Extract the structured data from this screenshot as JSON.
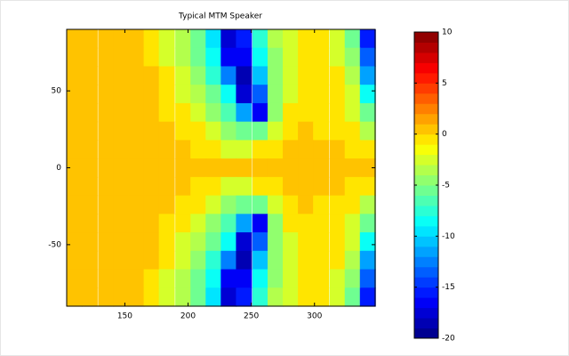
{
  "chart_data": {
    "type": "heatmap",
    "title": "Typical MTM Speaker",
    "x": [
      110,
      122,
      135,
      147,
      159,
      171,
      183,
      196,
      208,
      220,
      232,
      244,
      257,
      269,
      281,
      293,
      305,
      318,
      330,
      342
    ],
    "y": [
      84,
      72,
      60,
      48,
      36,
      24,
      12,
      0,
      -12,
      -24,
      -36,
      -48,
      -60,
      -72,
      -84
    ],
    "z": [
      [
        0,
        0,
        0,
        0,
        0,
        -1,
        -3,
        -4,
        -6,
        -10,
        -18,
        -16,
        -8,
        -4,
        -3,
        -1,
        -1,
        -3,
        -6,
        -16
      ],
      [
        0,
        0,
        0,
        0,
        0,
        -1,
        -3,
        -4,
        -6,
        -9,
        -17,
        -17,
        -9,
        -5,
        -3,
        -1,
        -1,
        -3,
        -5,
        -14
      ],
      [
        0,
        0,
        0,
        0,
        0,
        0,
        -1,
        -3,
        -5,
        -8,
        -13,
        -19,
        -11,
        -5,
        -3,
        -1,
        -1,
        -1,
        -4,
        -12
      ],
      [
        0,
        0,
        0,
        0,
        0,
        0,
        -1,
        -3,
        -4,
        -6,
        -9,
        -18,
        -14,
        -5,
        -3,
        -1,
        -1,
        -1,
        -3,
        -9
      ],
      [
        0,
        0,
        0,
        0,
        0,
        0,
        -1,
        -1,
        -3,
        -5,
        -7,
        -12,
        -17,
        -5,
        -1,
        -1,
        -1,
        -1,
        -3,
        -6
      ],
      [
        0,
        0,
        0,
        0,
        0,
        0,
        0,
        -1,
        -1,
        -3,
        -5,
        -6,
        -6,
        -3,
        -1,
        0,
        -1,
        -1,
        -1,
        -4
      ],
      [
        0,
        0,
        0,
        0,
        0,
        0,
        0,
        0,
        -1,
        -1,
        -3,
        -3,
        -1,
        -1,
        0,
        0,
        0,
        0,
        -1,
        -1
      ],
      [
        0,
        0,
        0,
        0,
        0,
        0,
        0,
        0,
        0,
        0,
        0,
        0,
        0,
        0,
        0,
        0,
        0,
        0,
        0,
        0
      ],
      [
        0,
        0,
        0,
        0,
        0,
        0,
        0,
        0,
        -1,
        -1,
        -3,
        -3,
        -1,
        -1,
        0,
        0,
        0,
        0,
        -1,
        -1
      ],
      [
        0,
        0,
        0,
        0,
        0,
        0,
        0,
        -1,
        -1,
        -3,
        -5,
        -6,
        -6,
        -3,
        -1,
        0,
        -1,
        -1,
        -1,
        -4
      ],
      [
        0,
        0,
        0,
        0,
        0,
        0,
        -1,
        -1,
        -3,
        -5,
        -7,
        -12,
        -17,
        -5,
        -1,
        -1,
        -1,
        -1,
        -3,
        -6
      ],
      [
        0,
        0,
        0,
        0,
        0,
        0,
        -1,
        -3,
        -4,
        -6,
        -9,
        -18,
        -14,
        -5,
        -3,
        -1,
        -1,
        -1,
        -3,
        -9
      ],
      [
        0,
        0,
        0,
        0,
        0,
        0,
        -1,
        -3,
        -5,
        -8,
        -13,
        -19,
        -11,
        -5,
        -3,
        -1,
        -1,
        -1,
        -4,
        -12
      ],
      [
        0,
        0,
        0,
        0,
        0,
        -1,
        -3,
        -4,
        -6,
        -9,
        -17,
        -17,
        -9,
        -5,
        -3,
        -1,
        -1,
        -3,
        -5,
        -14
      ],
      [
        0,
        0,
        0,
        0,
        0,
        -1,
        -3,
        -4,
        -6,
        -10,
        -18,
        -16,
        -8,
        -4,
        -3,
        -1,
        -1,
        -3,
        -6,
        -16
      ]
    ],
    "xlim": [
      104,
      348
    ],
    "xticks": [
      150,
      200,
      250,
      300
    ],
    "ylim": [
      -90,
      90
    ],
    "yticks": [
      -50,
      0,
      50
    ],
    "clim": [
      -20,
      10
    ],
    "cticks": [
      -20,
      -15,
      -10,
      -5,
      0,
      5,
      10
    ],
    "colormap": "jet"
  }
}
